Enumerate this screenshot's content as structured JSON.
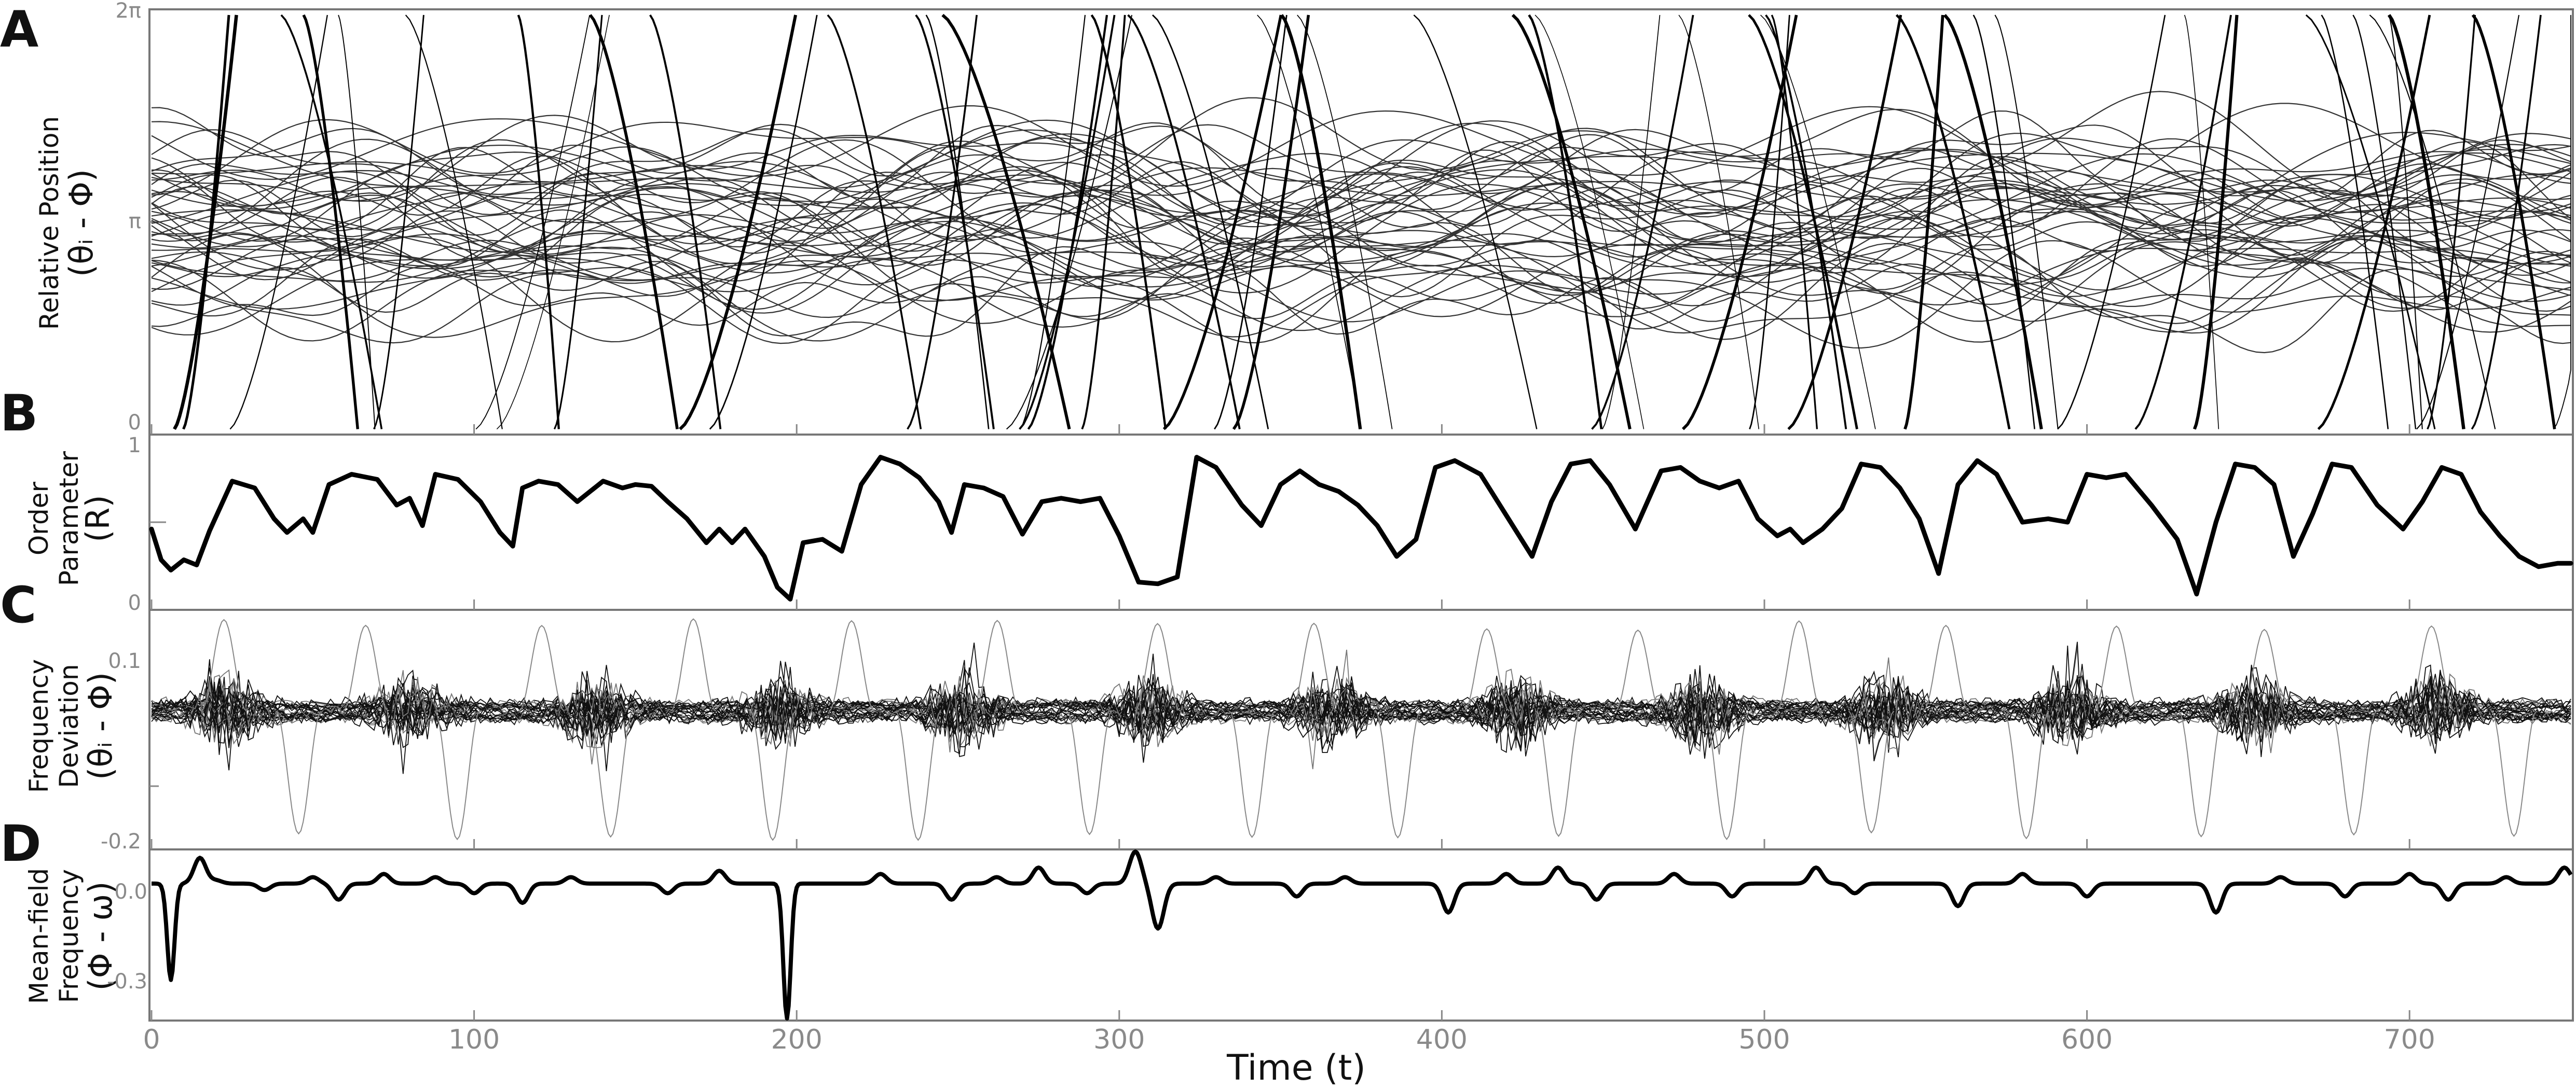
{
  "chart_data": [
    {
      "panel": "A",
      "type": "line",
      "ylabel_line1": "Relative Position",
      "ylabel_line2": "(θᵢ - Φ)",
      "yticks": [
        "0",
        "π",
        "2π"
      ],
      "ylim": [
        0,
        6.2832
      ],
      "xlim": [
        0,
        750
      ],
      "note": "many oscillator traces"
    },
    {
      "panel": "B",
      "type": "line",
      "ylabel_line1": "Order",
      "ylabel_line2": "Parameter",
      "ylabel_line3": "(R)",
      "yticks": [
        "0",
        "",
        "1"
      ],
      "ylim": [
        0,
        1
      ],
      "xlim": [
        0,
        750
      ],
      "x": [
        0,
        3,
        6,
        10,
        14,
        18,
        25,
        32,
        38,
        42,
        47,
        50,
        55,
        62,
        70,
        76,
        80,
        84,
        88,
        95,
        102,
        108,
        112,
        115,
        120,
        126,
        132,
        140,
        146,
        150,
        155,
        160,
        166,
        172,
        176,
        180,
        184,
        190,
        194,
        198,
        202,
        208,
        214,
        220,
        226,
        232,
        238,
        244,
        248,
        252,
        258,
        264,
        270,
        276,
        282,
        288,
        294,
        300,
        306,
        312,
        318,
        324,
        330,
        338,
        344,
        350,
        356,
        362,
        368,
        374,
        380,
        386,
        392,
        398,
        404,
        412,
        420,
        428,
        434,
        440,
        446,
        452,
        460,
        468,
        474,
        480,
        486,
        492,
        498,
        504,
        508,
        512,
        518,
        524,
        530,
        536,
        542,
        548,
        554,
        560,
        566,
        572,
        580,
        588,
        594,
        600,
        606,
        612,
        620,
        628,
        634,
        640,
        646,
        652,
        658,
        664,
        670,
        676,
        682,
        690,
        698,
        704,
        710,
        716,
        722,
        728,
        734,
        740,
        746,
        750
      ],
      "values": [
        0.46,
        0.28,
        0.22,
        0.28,
        0.25,
        0.45,
        0.74,
        0.7,
        0.52,
        0.44,
        0.52,
        0.44,
        0.72,
        0.78,
        0.75,
        0.6,
        0.64,
        0.48,
        0.78,
        0.75,
        0.62,
        0.44,
        0.36,
        0.7,
        0.74,
        0.72,
        0.62,
        0.74,
        0.7,
        0.72,
        0.71,
        0.62,
        0.52,
        0.38,
        0.46,
        0.38,
        0.46,
        0.3,
        0.12,
        0.05,
        0.38,
        0.4,
        0.33,
        0.72,
        0.88,
        0.84,
        0.76,
        0.62,
        0.44,
        0.72,
        0.7,
        0.65,
        0.43,
        0.62,
        0.64,
        0.62,
        0.64,
        0.42,
        0.15,
        0.14,
        0.18,
        0.88,
        0.82,
        0.6,
        0.48,
        0.72,
        0.8,
        0.72,
        0.68,
        0.6,
        0.48,
        0.3,
        0.4,
        0.82,
        0.86,
        0.78,
        0.54,
        0.3,
        0.62,
        0.84,
        0.86,
        0.72,
        0.46,
        0.8,
        0.82,
        0.74,
        0.7,
        0.74,
        0.52,
        0.42,
        0.46,
        0.38,
        0.46,
        0.58,
        0.84,
        0.82,
        0.7,
        0.52,
        0.2,
        0.72,
        0.86,
        0.78,
        0.5,
        0.52,
        0.5,
        0.78,
        0.76,
        0.78,
        0.6,
        0.4,
        0.08,
        0.5,
        0.84,
        0.82,
        0.72,
        0.3,
        0.55,
        0.84,
        0.82,
        0.6,
        0.46,
        0.62,
        0.82,
        0.78,
        0.56,
        0.42,
        0.3,
        0.24,
        0.26,
        0.26
      ]
    },
    {
      "panel": "C",
      "type": "line",
      "ylabel_line1": "Frequency",
      "ylabel_line2": "Deviation",
      "ylabel_line3": "(θᵢ - Φ)",
      "yticks": [
        "-0.2",
        "",
        "0.1"
      ],
      "ylim": [
        -0.22,
        0.16
      ],
      "xlim": [
        0,
        750
      ],
      "note": "noisy frequency deviation traces"
    },
    {
      "panel": "D",
      "type": "line",
      "ylabel_line1": "Mean-field",
      "ylabel_line2": "Frequency",
      "ylabel_line3": "(Φ - ω)",
      "yticks": [
        "-0.3",
        "0.0"
      ],
      "ylim": [
        -0.42,
        0.1
      ],
      "xlim": [
        0,
        750
      ],
      "xticks": [
        "0",
        "100",
        "200",
        "300",
        "400",
        "500",
        "600",
        "700"
      ],
      "xtick_values": [
        0,
        100,
        200,
        300,
        400,
        500,
        600,
        700
      ],
      "xlabel": "Time (t)",
      "spikes": [
        {
          "x": 6,
          "y": -0.3
        },
        {
          "x": 15,
          "y": 0.08
        },
        {
          "x": 20,
          "y": 0.01
        },
        {
          "x": 35,
          "y": -0.02
        },
        {
          "x": 50,
          "y": 0.02
        },
        {
          "x": 58,
          "y": -0.05
        },
        {
          "x": 72,
          "y": 0.03
        },
        {
          "x": 88,
          "y": 0.02
        },
        {
          "x": 100,
          "y": -0.03
        },
        {
          "x": 115,
          "y": -0.06
        },
        {
          "x": 130,
          "y": 0.02
        },
        {
          "x": 160,
          "y": -0.03
        },
        {
          "x": 176,
          "y": 0.04
        },
        {
          "x": 197,
          "y": -0.42
        },
        {
          "x": 226,
          "y": 0.03
        },
        {
          "x": 248,
          "y": -0.05
        },
        {
          "x": 262,
          "y": 0.02
        },
        {
          "x": 275,
          "y": 0.05
        },
        {
          "x": 290,
          "y": -0.03
        },
        {
          "x": 305,
          "y": 0.1
        },
        {
          "x": 312,
          "y": -0.14
        },
        {
          "x": 330,
          "y": 0.02
        },
        {
          "x": 355,
          "y": -0.04
        },
        {
          "x": 370,
          "y": 0.02
        },
        {
          "x": 402,
          "y": -0.09
        },
        {
          "x": 420,
          "y": 0.03
        },
        {
          "x": 436,
          "y": 0.05
        },
        {
          "x": 448,
          "y": -0.05
        },
        {
          "x": 472,
          "y": 0.03
        },
        {
          "x": 490,
          "y": -0.04
        },
        {
          "x": 516,
          "y": 0.05
        },
        {
          "x": 528,
          "y": -0.03
        },
        {
          "x": 560,
          "y": -0.07
        },
        {
          "x": 580,
          "y": 0.03
        },
        {
          "x": 600,
          "y": -0.04
        },
        {
          "x": 640,
          "y": -0.09
        },
        {
          "x": 660,
          "y": 0.02
        },
        {
          "x": 680,
          "y": -0.04
        },
        {
          "x": 700,
          "y": 0.03
        },
        {
          "x": 712,
          "y": -0.05
        },
        {
          "x": 730,
          "y": 0.02
        },
        {
          "x": 748,
          "y": 0.05
        }
      ]
    }
  ]
}
